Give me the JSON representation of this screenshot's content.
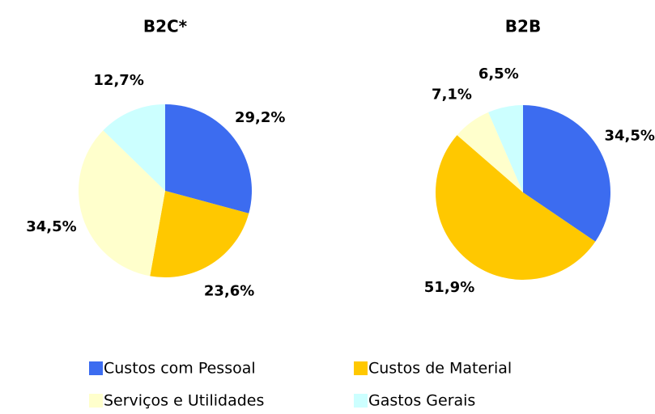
{
  "chart_data": [
    {
      "type": "pie",
      "title": "B2C*",
      "values": [
        29.2,
        23.6,
        34.5,
        12.7
      ],
      "value_labels": [
        "29,2%",
        "23,6%",
        "34,5%",
        "12,7%"
      ]
    },
    {
      "type": "pie",
      "title": "B2B",
      "values": [
        34.5,
        51.9,
        7.1,
        6.5
      ],
      "value_labels": [
        "34,5%",
        "51,9%",
        "7,1%",
        "6,5%"
      ]
    }
  ],
  "legend": {
    "categories": [
      "Custos com Pessoal",
      "Custos de Material",
      "Serviços e Utilidades",
      "Gastos Gerais"
    ],
    "colors": [
      "#3c6cf0",
      "#ffc800",
      "#ffffcc",
      "#ccffff"
    ]
  }
}
